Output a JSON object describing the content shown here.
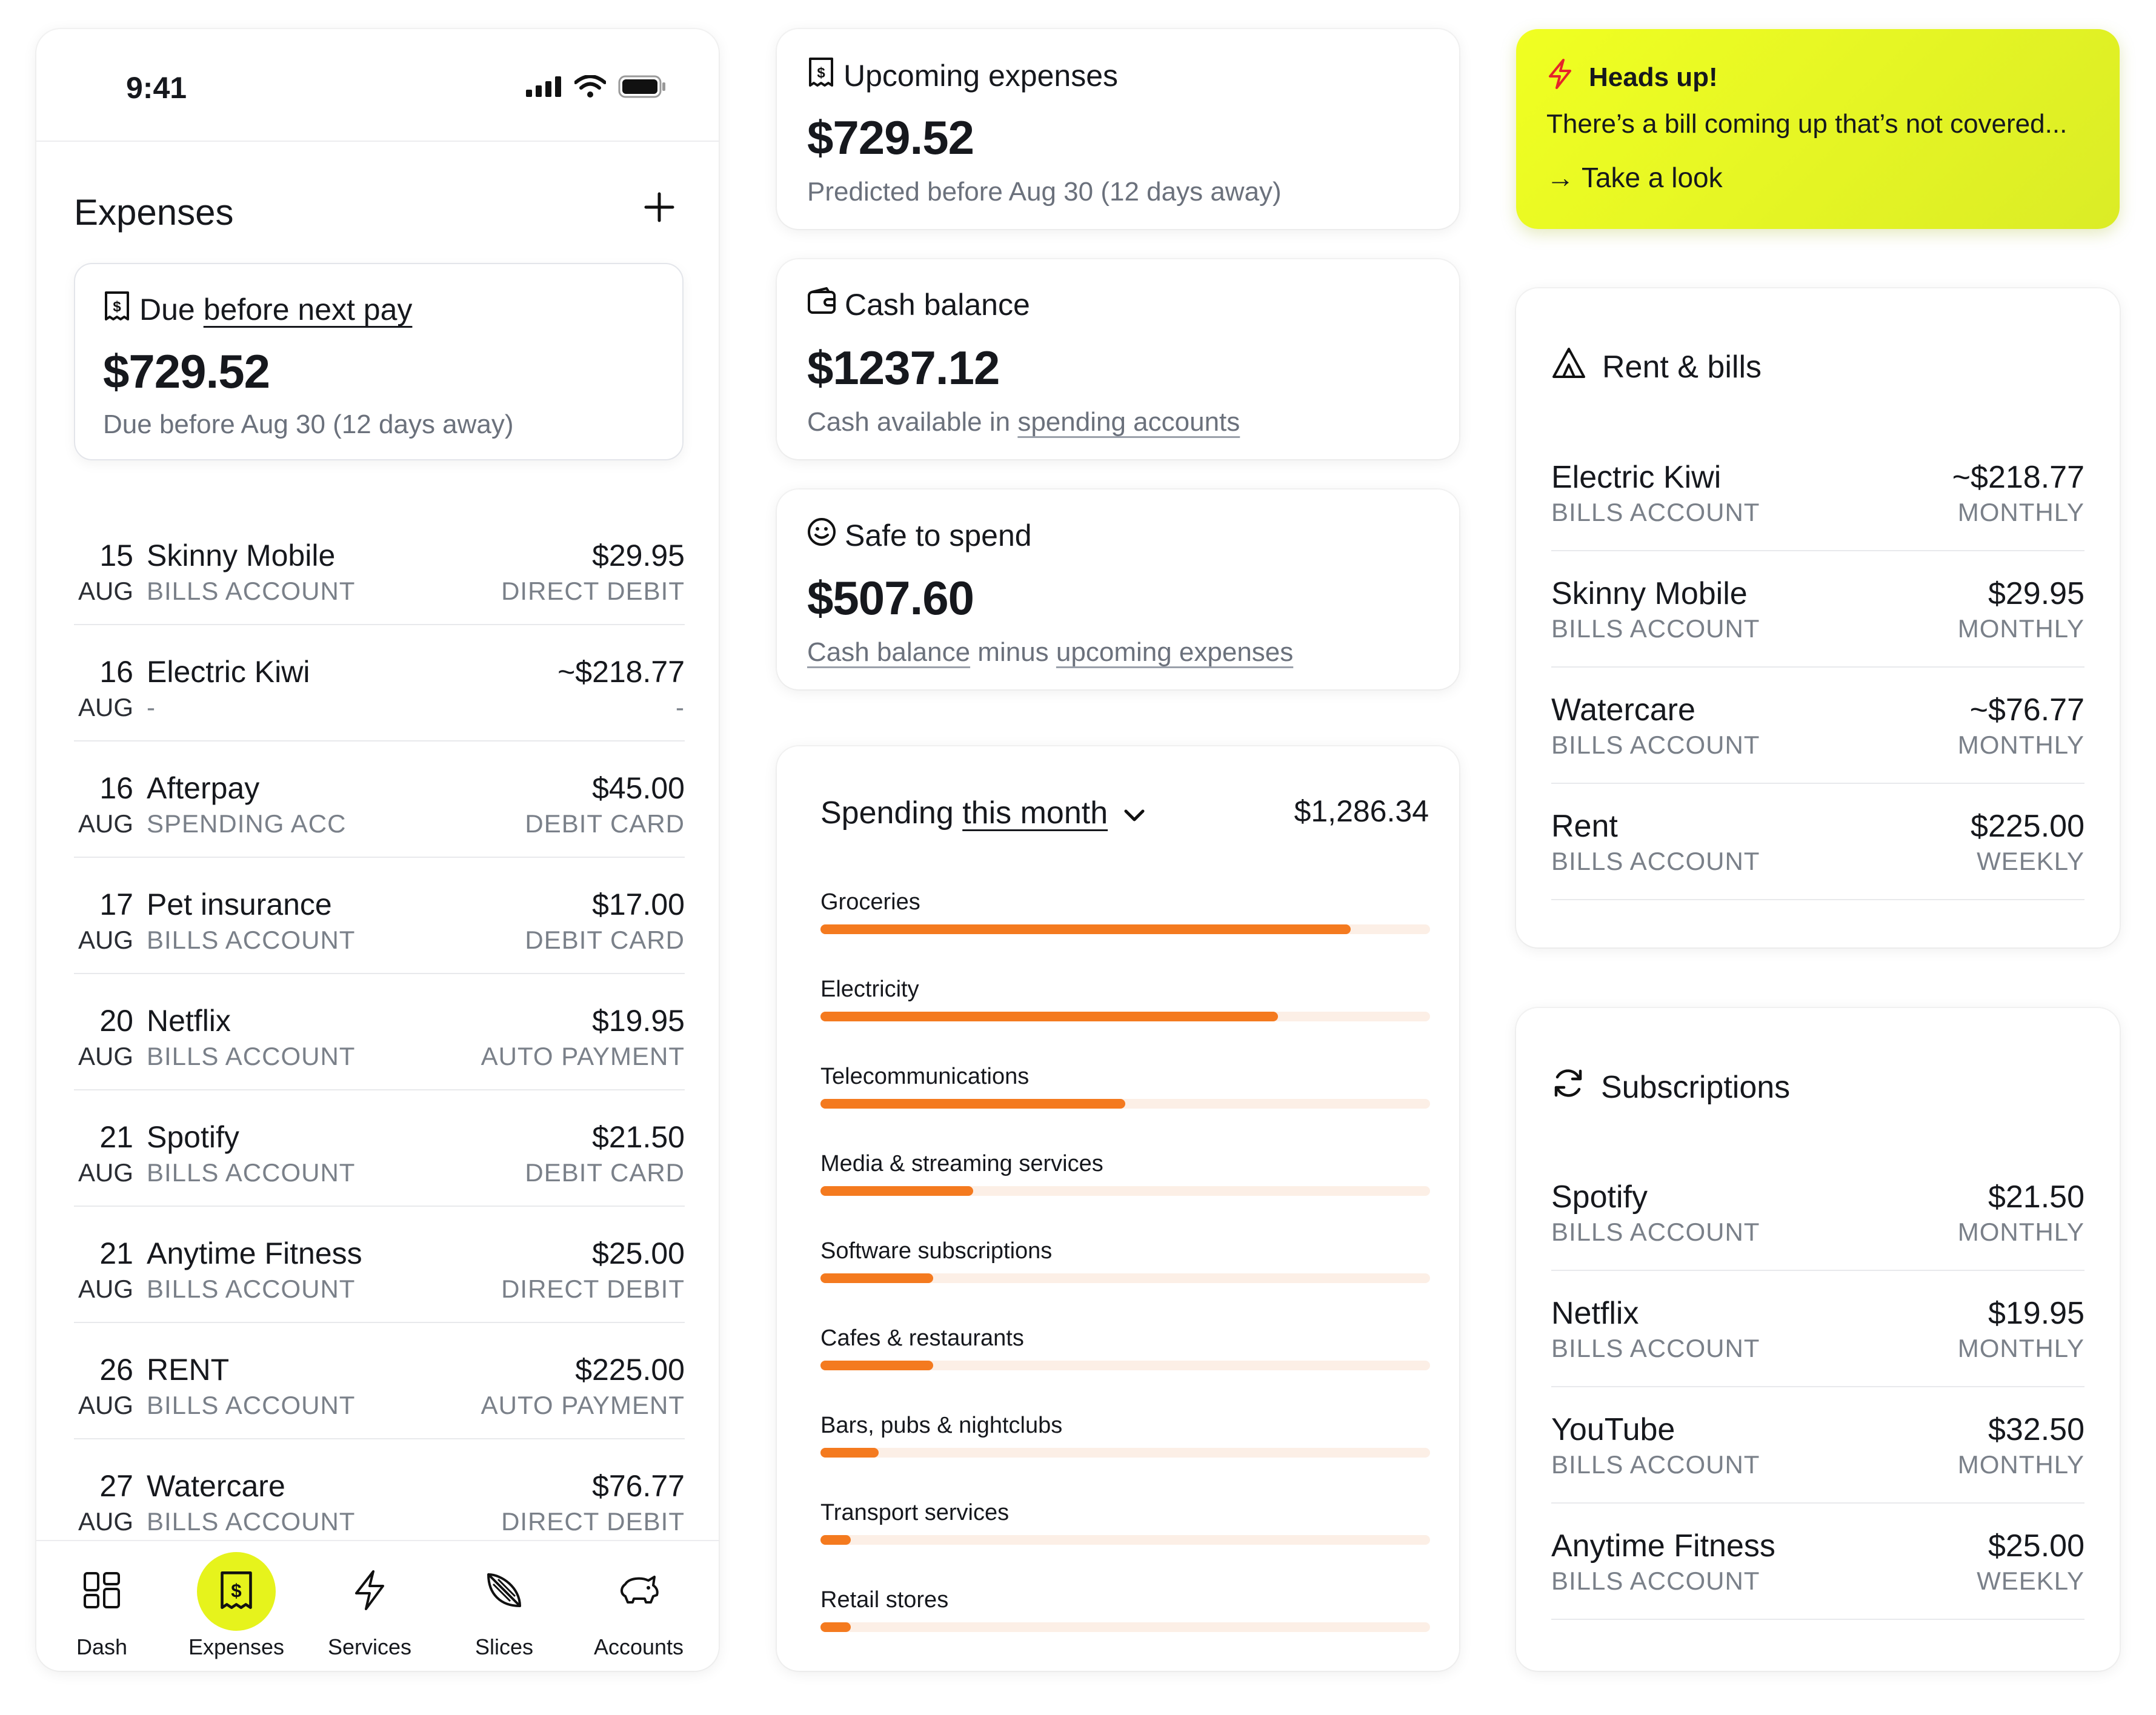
{
  "phone": {
    "status_time": "9:41",
    "title": "Expenses",
    "due_card": {
      "heading_plain": "Due",
      "heading_link": "before next pay",
      "amount": "$729.52",
      "subtitle": "Due before Aug 30  (12 days away)"
    },
    "expenses": [
      {
        "day": "15",
        "month": "AUG",
        "name": "Skinny Mobile",
        "account": "BILLS ACCOUNT",
        "amount": "$29.95",
        "method": "DIRECT DEBIT"
      },
      {
        "day": "16",
        "month": "AUG",
        "name": "Electric Kiwi",
        "account": "-",
        "amount": "~$218.77",
        "method": "-"
      },
      {
        "day": "16",
        "month": "AUG",
        "name": "Afterpay",
        "account": "SPENDING ACC",
        "amount": "$45.00",
        "method": "DEBIT CARD"
      },
      {
        "day": "17",
        "month": "AUG",
        "name": "Pet insurance",
        "account": "BILLS ACCOUNT",
        "amount": "$17.00",
        "method": "DEBIT CARD"
      },
      {
        "day": "20",
        "month": "AUG",
        "name": "Netflix",
        "account": "BILLS ACCOUNT",
        "amount": "$19.95",
        "method": "AUTO PAYMENT"
      },
      {
        "day": "21",
        "month": "AUG",
        "name": "Spotify",
        "account": "BILLS ACCOUNT",
        "amount": "$21.50",
        "method": "DEBIT CARD"
      },
      {
        "day": "21",
        "month": "AUG",
        "name": "Anytime Fitness",
        "account": "BILLS ACCOUNT",
        "amount": "$25.00",
        "method": "DIRECT DEBIT"
      },
      {
        "day": "26",
        "month": "AUG",
        "name": "RENT",
        "account": "BILLS ACCOUNT",
        "amount": "$225.00",
        "method": "AUTO PAYMENT"
      },
      {
        "day": "27",
        "month": "AUG",
        "name": "Watercare",
        "account": "BILLS ACCOUNT",
        "amount": "$76.77",
        "method": "DIRECT DEBIT"
      }
    ],
    "tabs": [
      {
        "label": "Dash",
        "icon": "grid-icon"
      },
      {
        "label": "Expenses",
        "icon": "receipt-icon",
        "active": true
      },
      {
        "label": "Services",
        "icon": "lightning-icon"
      },
      {
        "label": "Slices",
        "icon": "slice-icon"
      },
      {
        "label": "Accounts",
        "icon": "piggy-bank-icon"
      }
    ]
  },
  "summary": {
    "upcoming": {
      "title": "Upcoming expenses",
      "amount": "$729.52",
      "subtitle": "Predicted before Aug 30 (12 days away)"
    },
    "cash": {
      "title": "Cash balance",
      "amount": "$1237.12",
      "subtitle_plain": "Cash available in ",
      "subtitle_link": "spending accounts"
    },
    "safe": {
      "title": "Safe to spend",
      "amount": "$507.60",
      "link1": "Cash balance",
      "middle": " minus ",
      "link2": "upcoming expenses"
    }
  },
  "spending": {
    "title_plain": "Spending",
    "title_link": "this month",
    "total": "$1,286.34",
    "categories": [
      {
        "label": "Groceries",
        "share": 0.87
      },
      {
        "label": "Electricity",
        "share": 0.75
      },
      {
        "label": "Telecommunications",
        "share": 0.5
      },
      {
        "label": "Media & streaming services",
        "share": 0.25
      },
      {
        "label": "Software subscriptions",
        "share": 0.185
      },
      {
        "label": "Cafes & restaurants",
        "share": 0.185
      },
      {
        "label": "Bars, pubs & nightclubs",
        "share": 0.095
      },
      {
        "label": "Transport services",
        "share": 0.05
      },
      {
        "label": "Retail stores",
        "share": 0.05
      }
    ]
  },
  "headsup": {
    "title": "Heads up!",
    "text": "There’s a bill coming up that’s not covered...",
    "link": "→ Take a look"
  },
  "rent_bills": {
    "title": "Rent & bills",
    "items": [
      {
        "name": "Electric Kiwi",
        "account": "BILLS ACCOUNT",
        "amount": "~$218.77",
        "frequency": "MONTHLY"
      },
      {
        "name": "Skinny Mobile",
        "account": "BILLS ACCOUNT",
        "amount": "$29.95",
        "frequency": "MONTHLY"
      },
      {
        "name": "Watercare",
        "account": "BILLS ACCOUNT",
        "amount": "~$76.77",
        "frequency": "MONTHLY"
      },
      {
        "name": "Rent",
        "account": "BILLS ACCOUNT",
        "amount": "$225.00",
        "frequency": "WEEKLY"
      }
    ]
  },
  "subscriptions": {
    "title": "Subscriptions",
    "items": [
      {
        "name": "Spotify",
        "account": "BILLS ACCOUNT",
        "amount": "$21.50",
        "frequency": "MONTHLY"
      },
      {
        "name": "Netflix",
        "account": "BILLS ACCOUNT",
        "amount": "$19.95",
        "frequency": "MONTHLY"
      },
      {
        "name": "YouTube",
        "account": "BILLS ACCOUNT",
        "amount": "$32.50",
        "frequency": "MONTHLY"
      },
      {
        "name": "Anytime Fitness",
        "account": "BILLS ACCOUNT",
        "amount": "$25.00",
        "frequency": "WEEKLY"
      }
    ]
  },
  "colors": {
    "accent_orange": "#f47a1f",
    "track": "#fcefe6",
    "highlight_yellow": "#e6f31c",
    "alert_red": "#e5242a"
  }
}
